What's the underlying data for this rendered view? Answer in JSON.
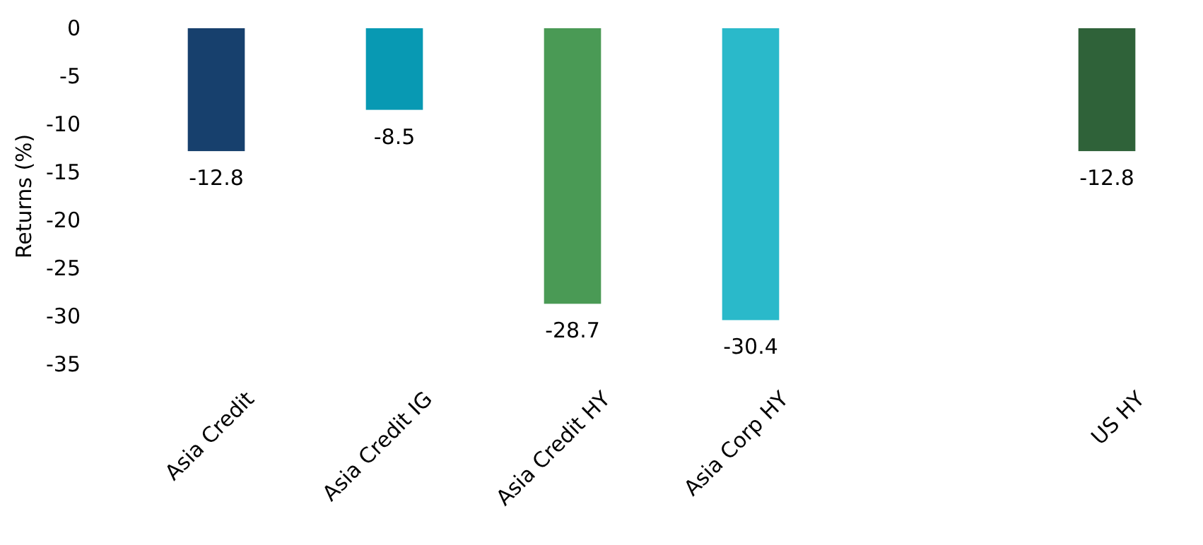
{
  "chart_data": {
    "type": "bar",
    "ylabel": "Returns (%)",
    "categories": [
      "Asia Credit",
      "Asia Credit IG",
      "Asia Credit HY",
      "Asia Corp HY",
      null,
      "US HY"
    ],
    "values": [
      -12.8,
      -8.5,
      -28.7,
      -30.4,
      null,
      -12.8
    ],
    "colors": [
      "#17406d",
      "#0899b3",
      "#4a9a55",
      "#2ab9ca",
      null,
      "#2f6239"
    ],
    "ylim": [
      -35,
      0
    ],
    "yticks": [
      0,
      -5,
      -10,
      -15,
      -20,
      -25,
      -30,
      -35
    ],
    "data_labels": true,
    "grid": false
  }
}
